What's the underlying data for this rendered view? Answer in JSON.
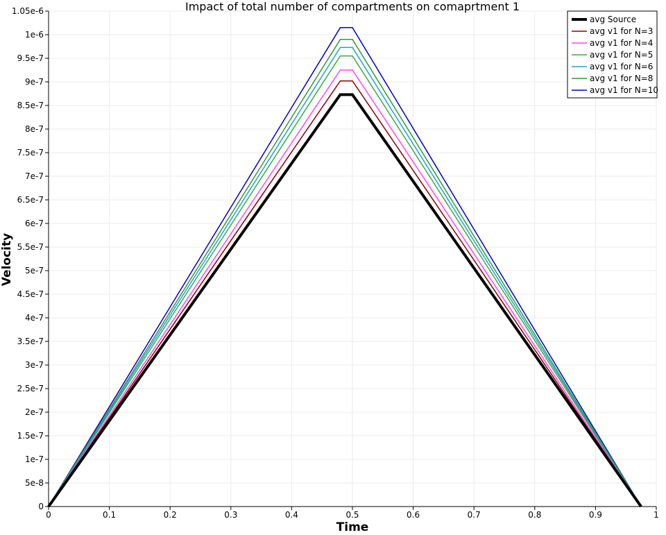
{
  "chart_data": {
    "type": "line",
    "title": "Impact of total number of compartments on comaprtment 1",
    "xlabel": "Time",
    "ylabel": "Velocity",
    "xlim": [
      0,
      1
    ],
    "ylim": [
      0,
      1.05e-06
    ],
    "grid": true,
    "legend_placement": "top-right",
    "x_ticks": [
      "0",
      "0.1",
      "0.2",
      "0.3",
      "0.4",
      "0.5",
      "0.6",
      "0.7",
      "0.8",
      "0.9",
      "1"
    ],
    "y_ticks": [
      "0",
      "5e-8",
      "1e-7",
      "1.5e-7",
      "2e-7",
      "2.5e-7",
      "3e-7",
      "3.5e-7",
      "4e-7",
      "4.5e-7",
      "5e-7",
      "5.5e-7",
      "6e-7",
      "6.5e-7",
      "7e-7",
      "7.5e-7",
      "8e-7",
      "8.5e-7",
      "9e-7",
      "9.5e-7",
      "1e-6",
      "1.05e-6"
    ],
    "series": [
      {
        "name": "avg Source",
        "color": "#000000",
        "width": 4,
        "x": [
          0,
          0.48,
          0.5,
          0.975
        ],
        "y": [
          0,
          8.73e-07,
          8.73e-07,
          0
        ]
      },
      {
        "name": "avg v1 for N=3",
        "color": "#8b0000",
        "width": 1.5,
        "x": [
          0,
          0.48,
          0.5,
          0.975
        ],
        "y": [
          0,
          9.02e-07,
          9.02e-07,
          0
        ]
      },
      {
        "name": "avg v1 for N=4",
        "color": "#ff44ff",
        "width": 1.5,
        "x": [
          0,
          0.48,
          0.5,
          0.975
        ],
        "y": [
          0,
          9.25e-07,
          9.25e-07,
          0
        ]
      },
      {
        "name": "avg v1 for N=5",
        "color": "#3daa3d",
        "width": 1.5,
        "x": [
          0,
          0.48,
          0.5,
          0.975
        ],
        "y": [
          0,
          9.55e-07,
          9.55e-07,
          0
        ]
      },
      {
        "name": "avg v1 for N=6",
        "color": "#1ea0dc",
        "width": 1.5,
        "x": [
          0,
          0.48,
          0.5,
          0.975
        ],
        "y": [
          0,
          9.73e-07,
          9.73e-07,
          0
        ]
      },
      {
        "name": "avg v1 for N=8",
        "color": "#2e9e2e",
        "width": 1.5,
        "x": [
          0,
          0.48,
          0.5,
          0.975
        ],
        "y": [
          0,
          9.9e-07,
          9.9e-07,
          0
        ]
      },
      {
        "name": "avg v1 for N=10",
        "color": "#0000cc",
        "width": 1.5,
        "x": [
          0,
          0.48,
          0.5,
          0.975
        ],
        "y": [
          0,
          1.015e-06,
          1.015e-06,
          0
        ]
      }
    ]
  }
}
